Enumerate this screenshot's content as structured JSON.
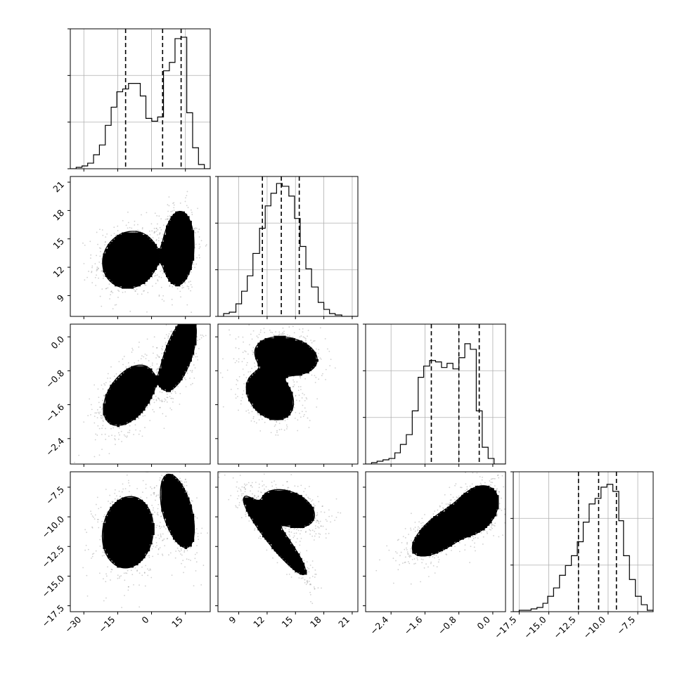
{
  "chart_data": {
    "type": "corner",
    "grid": true,
    "parameters": [
      {
        "index": 0,
        "range": [
          -36,
          26
        ],
        "ticks": [
          -30,
          -15,
          0,
          15
        ],
        "tick_labels": [
          "−30",
          "−15",
          "0",
          "15"
        ]
      },
      {
        "index": 1,
        "range": [
          6.8,
          21.6
        ],
        "ticks": [
          9,
          12,
          15,
          18,
          21
        ],
        "tick_labels": [
          "9",
          "12",
          "15",
          "18",
          "21"
        ]
      },
      {
        "index": 2,
        "range": [
          -3.0,
          0.3
        ],
        "ticks": [
          -2.4,
          -1.6,
          -0.8,
          0.0
        ],
        "tick_labels": [
          "−2.4",
          "−1.6",
          "−0.8",
          "0.0"
        ]
      },
      {
        "index": 3,
        "range": [
          -18.0,
          -6.2
        ],
        "ticks": [
          -17.5,
          -15.0,
          -12.5,
          -10.0,
          -7.5
        ],
        "tick_labels": [
          "−17.5",
          "−15.0",
          "−12.5",
          "−10.0",
          "−7.5"
        ]
      }
    ],
    "histograms": [
      {
        "param": 0,
        "bins": [
          -36,
          -33.4,
          -30.8,
          -28.3,
          -25.7,
          -23.1,
          -20.5,
          -17.9,
          -15.4,
          -12.8,
          -10.2,
          -7.6,
          -5.0,
          -2.5,
          0.1,
          2.7,
          5.3,
          7.9,
          10.4,
          13.0,
          15.6,
          18.2,
          20.8,
          23.4,
          26
        ],
        "counts": [
          0.0,
          0.01,
          0.02,
          0.04,
          0.1,
          0.17,
          0.31,
          0.44,
          0.55,
          0.57,
          0.61,
          0.61,
          0.52,
          0.36,
          0.34,
          0.37,
          0.7,
          0.76,
          0.93,
          0.94,
          0.4,
          0.15,
          0.03,
          0.0
        ],
        "quantiles": [
          -11.5,
          4.9,
          13.1
        ]
      },
      {
        "param": 1,
        "bins": [
          6.8,
          7.4,
          8.0,
          8.7,
          9.3,
          9.9,
          10.5,
          11.2,
          11.8,
          12.4,
          13.0,
          13.6,
          14.3,
          14.9,
          15.5,
          16.1,
          16.7,
          17.4,
          18.0,
          18.6,
          19.2,
          19.9,
          20.5,
          21.1,
          21.6
        ],
        "counts": [
          0.0,
          0.02,
          0.03,
          0.09,
          0.18,
          0.29,
          0.45,
          0.63,
          0.79,
          0.88,
          0.95,
          0.93,
          0.86,
          0.7,
          0.5,
          0.34,
          0.21,
          0.1,
          0.05,
          0.02,
          0.01,
          0.0,
          0.0,
          0.0
        ],
        "quantiles": [
          11.5,
          13.5,
          15.4
        ]
      },
      {
        "param": 2,
        "bins": [
          -3.0,
          -2.86,
          -2.73,
          -2.59,
          -2.45,
          -2.31,
          -2.18,
          -2.04,
          -1.9,
          -1.76,
          -1.63,
          -1.49,
          -1.35,
          -1.21,
          -1.08,
          -0.94,
          -0.8,
          -0.66,
          -0.53,
          -0.39,
          -0.25,
          -0.11,
          0.03,
          0.16,
          0.3
        ],
        "counts": [
          0.0,
          0.01,
          0.02,
          0.03,
          0.04,
          0.08,
          0.14,
          0.21,
          0.38,
          0.62,
          0.7,
          0.74,
          0.73,
          0.69,
          0.72,
          0.68,
          0.76,
          0.86,
          0.82,
          0.38,
          0.12,
          0.04,
          0.0,
          0.0
        ],
        "quantiles": [
          -1.45,
          -0.8,
          -0.32
        ]
      },
      {
        "param": 3,
        "bins": [
          -18.0,
          -17.5,
          -17.0,
          -16.5,
          -16.0,
          -15.5,
          -15.1,
          -14.6,
          -14.1,
          -13.6,
          -13.1,
          -12.6,
          -12.1,
          -11.6,
          -11.1,
          -10.6,
          -10.1,
          -9.6,
          -9.1,
          -8.7,
          -8.2,
          -7.7,
          -7.2,
          -6.7,
          -6.2
        ],
        "counts": [
          0.0,
          0.01,
          0.01,
          0.02,
          0.03,
          0.06,
          0.11,
          0.17,
          0.26,
          0.33,
          0.4,
          0.5,
          0.64,
          0.77,
          0.81,
          0.89,
          0.91,
          0.86,
          0.65,
          0.4,
          0.23,
          0.11,
          0.05,
          0.01
        ],
        "quantiles": [
          -12.5,
          -10.8,
          -9.3
        ]
      }
    ],
    "joint": [
      {
        "x": 0,
        "y": 1,
        "modes": [
          {
            "mx": -9.5,
            "my": 12.8,
            "sx": 6.5,
            "sy": 1.6,
            "rho": 0.1,
            "w": 0.5,
            "peak": 0.7
          },
          {
            "mx": 12.0,
            "my": 14.0,
            "sx": 3.3,
            "sy": 1.9,
            "rho": 0.1,
            "w": 0.5,
            "peak": 1.0
          }
        ]
      },
      {
        "x": 0,
        "y": 2,
        "modes": [
          {
            "mx": -10.0,
            "my": -1.38,
            "sx": 6.0,
            "sy": 0.38,
            "rho": 0.45,
            "w": 0.5,
            "peak": 0.7
          },
          {
            "mx": 12.0,
            "my": -0.4,
            "sx": 3.8,
            "sy": 0.42,
            "rho": 0.6,
            "w": 0.5,
            "peak": 1.0
          }
        ]
      },
      {
        "x": 1,
        "y": 2,
        "modes": [
          {
            "mx": 12.3,
            "my": -1.38,
            "sx": 1.3,
            "sy": 0.3,
            "rho": -0.3,
            "w": 0.5,
            "peak": 0.75
          },
          {
            "mx": 14.0,
            "my": -0.45,
            "sx": 1.6,
            "sy": 0.22,
            "rho": -0.2,
            "w": 0.5,
            "peak": 1.0
          }
        ]
      },
      {
        "x": 0,
        "y": 3,
        "modes": [
          {
            "mx": -10.5,
            "my": -11.3,
            "sx": 6.0,
            "sy": 1.6,
            "rho": 0.1,
            "w": 0.5,
            "peak": 0.7
          },
          {
            "mx": 11.5,
            "my": -9.5,
            "sx": 3.6,
            "sy": 1.5,
            "rho": -0.5,
            "w": 0.5,
            "peak": 1.0
          }
        ]
      },
      {
        "x": 1,
        "y": 3,
        "modes": [
          {
            "mx": 12.8,
            "my": -11.6,
            "sx": 1.6,
            "sy": 1.6,
            "rho": -0.93,
            "w": 0.45,
            "peak": 1.0
          },
          {
            "mx": 14.2,
            "my": -9.3,
            "sx": 1.5,
            "sy": 0.85,
            "rho": -0.35,
            "w": 0.55,
            "peak": 0.7
          }
        ]
      },
      {
        "x": 2,
        "y": 3,
        "modes": [
          {
            "mx": -1.1,
            "my": -11.0,
            "sx": 0.45,
            "sy": 1.3,
            "rho": 0.7,
            "w": 0.5,
            "peak": 0.7
          },
          {
            "mx": -0.38,
            "my": -9.4,
            "sx": 0.25,
            "sy": 1.0,
            "rho": 0.3,
            "w": 0.5,
            "peak": 1.0
          }
        ]
      }
    ]
  }
}
